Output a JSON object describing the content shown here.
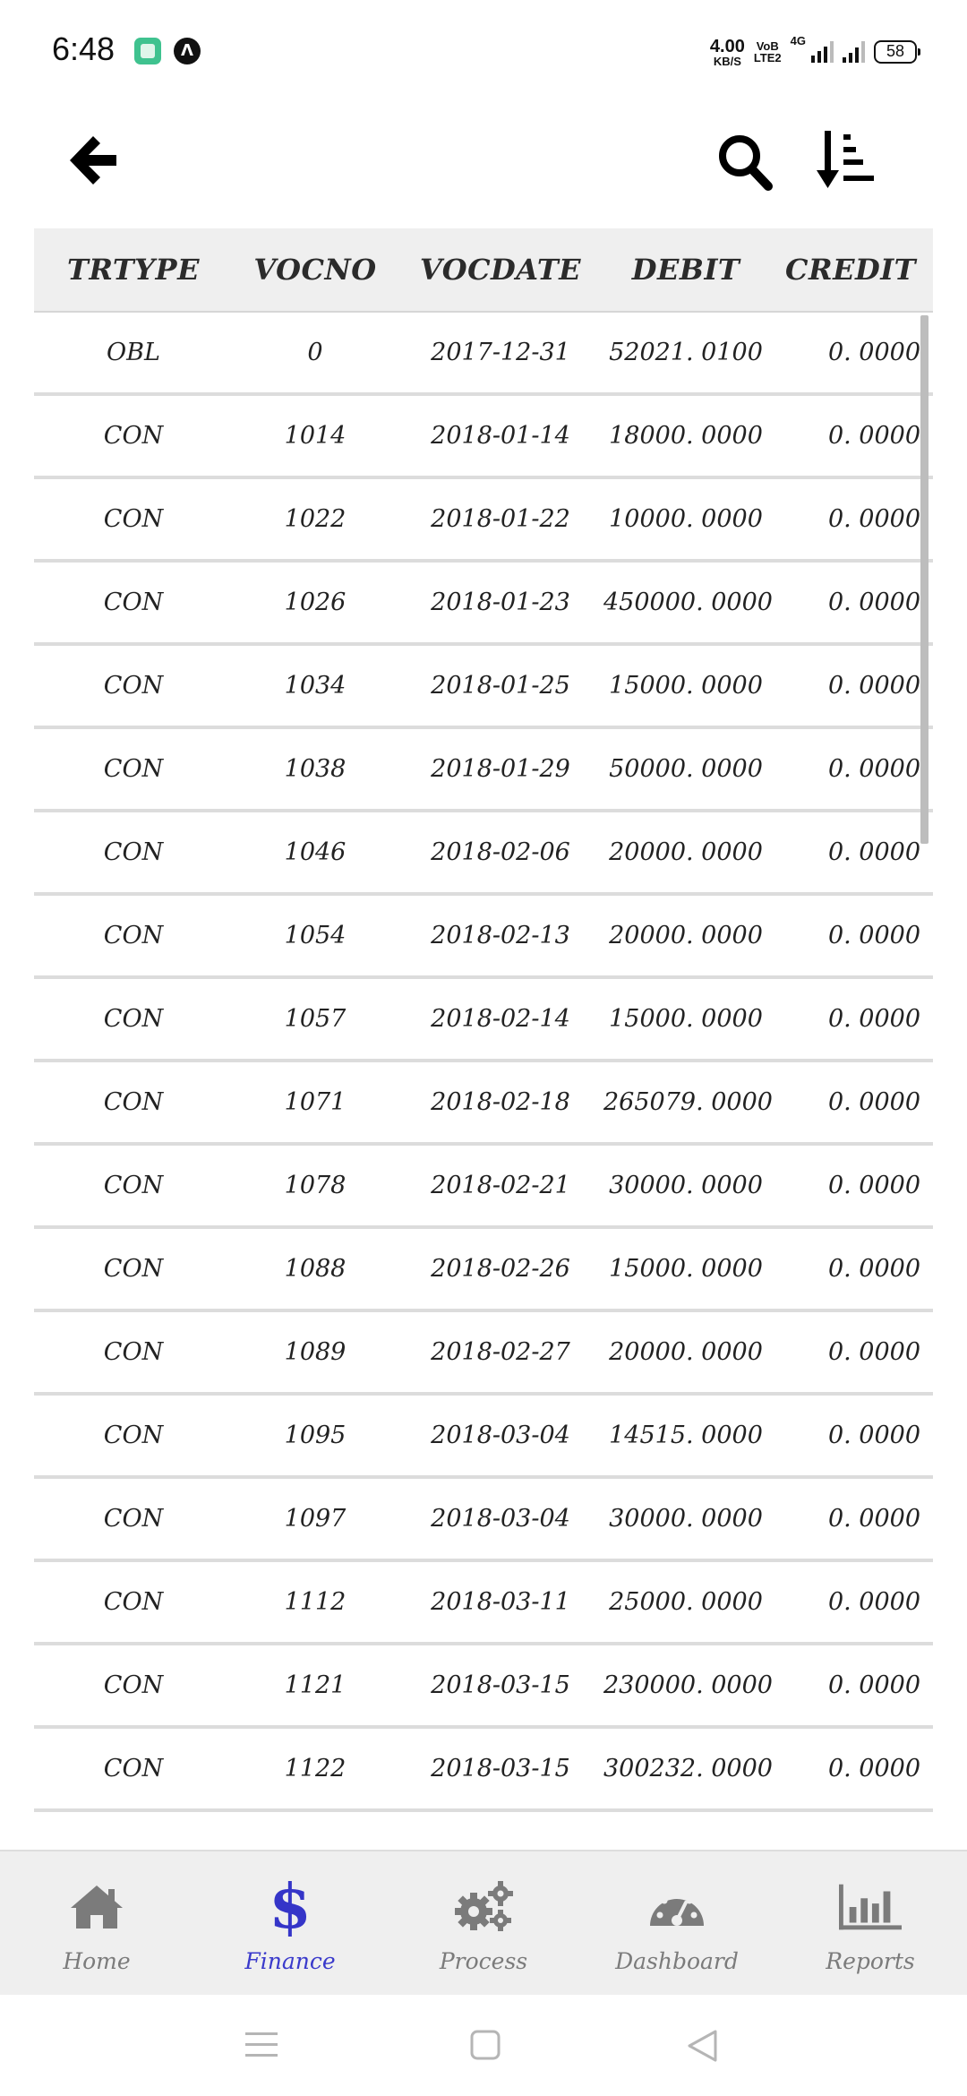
{
  "status_bar": {
    "time": "6:48",
    "net_speed_value": "4.00",
    "net_speed_unit": "KB/S",
    "volte_top": "VoB",
    "volte_bottom": "LTE2",
    "network": "4G",
    "battery": "58",
    "app_icon_2": "Λ"
  },
  "header": {
    "back_icon": "arrow-left-icon",
    "search_icon": "search-icon",
    "sort_icon": "sort-descending-icon"
  },
  "table": {
    "columns": [
      "TRTYPE",
      "VOCNO",
      "VOCDATE",
      "DEBIT",
      "CREDIT"
    ],
    "rows": [
      [
        "OBL",
        "0",
        "2017-12-31",
        "52021. 0100",
        "0. 0000"
      ],
      [
        "CON",
        "1014",
        "2018-01-14",
        "18000. 0000",
        "0. 0000"
      ],
      [
        "CON",
        "1022",
        "2018-01-22",
        "10000. 0000",
        "0. 0000"
      ],
      [
        "CON",
        "1026",
        "2018-01-23",
        "450000. 0000",
        "0. 0000"
      ],
      [
        "CON",
        "1034",
        "2018-01-25",
        "15000. 0000",
        "0. 0000"
      ],
      [
        "CON",
        "1038",
        "2018-01-29",
        "50000. 0000",
        "0. 0000"
      ],
      [
        "CON",
        "1046",
        "2018-02-06",
        "20000. 0000",
        "0. 0000"
      ],
      [
        "CON",
        "1054",
        "2018-02-13",
        "20000. 0000",
        "0. 0000"
      ],
      [
        "CON",
        "1057",
        "2018-02-14",
        "15000. 0000",
        "0. 0000"
      ],
      [
        "CON",
        "1071",
        "2018-02-18",
        "265079. 0000",
        "0. 0000"
      ],
      [
        "CON",
        "1078",
        "2018-02-21",
        "30000. 0000",
        "0. 0000"
      ],
      [
        "CON",
        "1088",
        "2018-02-26",
        "15000. 0000",
        "0. 0000"
      ],
      [
        "CON",
        "1089",
        "2018-02-27",
        "20000. 0000",
        "0. 0000"
      ],
      [
        "CON",
        "1095",
        "2018-03-04",
        "14515. 0000",
        "0. 0000"
      ],
      [
        "CON",
        "1097",
        "2018-03-04",
        "30000. 0000",
        "0. 0000"
      ],
      [
        "CON",
        "1112",
        "2018-03-11",
        "25000. 0000",
        "0. 0000"
      ],
      [
        "CON",
        "1121",
        "2018-03-15",
        "230000. 0000",
        "0. 0000"
      ],
      [
        "CON",
        "1122",
        "2018-03-15",
        "300232. 0000",
        "0. 0000"
      ]
    ]
  },
  "bottom_nav": {
    "active": "Finance",
    "active_color": "#3535c8",
    "inactive_color": "#7b7b7b",
    "items": [
      {
        "label": "Home",
        "icon": "home-icon"
      },
      {
        "label": "Finance",
        "icon": "dollar-icon",
        "glyph": "$"
      },
      {
        "label": "Process",
        "icon": "gears-icon"
      },
      {
        "label": "Dashboard",
        "icon": "speedometer-icon"
      },
      {
        "label": "Reports",
        "icon": "bar-chart-icon"
      }
    ]
  },
  "system_nav": [
    "menu-icon",
    "home-square-icon",
    "back-triangle-icon"
  ]
}
